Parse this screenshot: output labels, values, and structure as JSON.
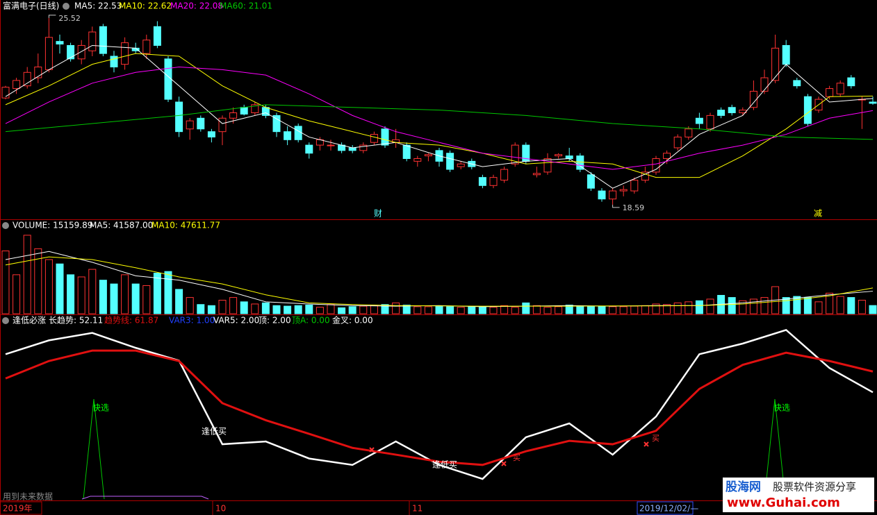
{
  "chart_data": [
    {
      "type": "candlestick",
      "title": "富满电子(日线)",
      "ylim": [
        18.2,
        25.8
      ],
      "up_color": "#ff3232",
      "down_color": "#54ffff",
      "open": [
        22.55,
        22.9,
        23.0,
        23.3,
        23.6,
        24.65,
        24.5,
        24.0,
        24.3,
        25.2,
        24.1,
        23.8,
        24.4,
        24.2,
        25.2,
        24.0,
        22.4,
        21.4,
        21.8,
        21.3,
        21.3,
        21.8,
        22.2,
        22.0,
        22.2,
        21.9,
        21.3,
        21.5,
        20.8,
        20.8,
        20.8,
        20.8,
        20.7,
        20.6,
        20.9,
        21.4,
        20.9,
        20.8,
        20.2,
        20.4,
        20.6,
        20.5,
        20.0,
        20.2,
        19.6,
        19.3,
        19.5,
        20.1,
        20.8,
        19.7,
        19.8,
        20.4,
        20.4,
        20.4,
        19.7,
        19.1,
        18.8,
        19.1,
        19.1,
        19.5,
        19.8,
        20.3,
        20.7,
        21.1,
        21.8,
        21.4,
        22.1,
        22.2,
        22.0,
        22.2,
        22.8,
        23.2,
        24.5,
        23.2,
        22.6,
        22.1,
        22.6,
        22.7,
        23.3,
        22.5,
        22.4
      ],
      "high": [
        23.0,
        23.3,
        23.7,
        24.2,
        25.52,
        24.9,
        24.6,
        24.7,
        25.2,
        25.3,
        24.3,
        24.8,
        24.6,
        24.9,
        25.4,
        24.1,
        22.6,
        21.8,
        21.9,
        21.4,
        21.9,
        22.2,
        22.3,
        22.4,
        22.3,
        22.0,
        21.5,
        21.6,
        20.9,
        21.1,
        21.0,
        20.9,
        20.8,
        20.9,
        21.3,
        21.5,
        21.4,
        20.9,
        20.4,
        20.5,
        20.7,
        20.6,
        20.2,
        20.3,
        19.7,
        19.7,
        20.0,
        20.9,
        20.9,
        20.0,
        20.5,
        20.5,
        20.7,
        20.5,
        19.8,
        19.2,
        19.2,
        19.3,
        19.6,
        20.0,
        20.4,
        20.6,
        21.2,
        21.5,
        22.0,
        22.0,
        22.2,
        22.3,
        22.2,
        23.2,
        23.6,
        24.9,
        24.7,
        23.3,
        22.7,
        22.6,
        23.0,
        23.2,
        23.4,
        22.6,
        22.6
      ],
      "low": [
        22.5,
        22.7,
        22.9,
        23.1,
        23.5,
        24.2,
        23.9,
        23.8,
        24.1,
        24.1,
        23.5,
        23.6,
        24.2,
        24.0,
        24.4,
        22.4,
        21.1,
        21.0,
        21.3,
        20.9,
        20.8,
        21.6,
        21.9,
        21.9,
        21.8,
        21.1,
        20.8,
        20.9,
        20.3,
        20.6,
        20.6,
        20.5,
        20.5,
        20.5,
        20.8,
        20.7,
        20.7,
        20.2,
        20.0,
        20.2,
        20.0,
        19.8,
        19.9,
        19.9,
        19.2,
        19.2,
        19.4,
        20.0,
        20.1,
        19.6,
        19.7,
        20.3,
        20.2,
        19.8,
        19.1,
        18.7,
        18.59,
        18.9,
        19.0,
        19.4,
        19.7,
        20.1,
        20.6,
        21.0,
        21.4,
        21.3,
        21.8,
        21.9,
        21.9,
        22.1,
        22.7,
        23.1,
        23.7,
        22.9,
        21.5,
        22.0,
        22.5,
        22.6,
        22.9,
        21.4,
        22.3
      ],
      "close": [
        22.95,
        23.2,
        23.5,
        23.7,
        24.8,
        24.55,
        24.0,
        24.5,
        25.0,
        24.2,
        23.7,
        24.6,
        24.3,
        24.7,
        24.5,
        22.5,
        21.3,
        21.7,
        21.4,
        21.1,
        21.8,
        22.0,
        21.95,
        22.3,
        21.9,
        21.3,
        21.0,
        21.0,
        20.5,
        21.0,
        20.8,
        20.6,
        20.6,
        20.8,
        21.2,
        20.8,
        21.0,
        20.3,
        20.3,
        20.45,
        20.2,
        19.9,
        20.1,
        20.0,
        19.3,
        19.6,
        19.9,
        20.8,
        20.2,
        19.75,
        20.3,
        20.45,
        20.3,
        19.9,
        19.2,
        18.8,
        19.1,
        19.15,
        19.5,
        19.8,
        20.3,
        20.5,
        21.1,
        21.4,
        21.6,
        21.9,
        21.9,
        22.0,
        22.1,
        22.8,
        23.3,
        24.4,
        23.8,
        23.0,
        21.6,
        22.5,
        22.9,
        23.1,
        23.0,
        22.5,
        22.35
      ],
      "series": [
        {
          "name": "MA5: 22.53",
          "color": "#ffffff",
          "x": [
            0,
            4,
            8,
            12,
            16,
            20,
            24,
            28,
            32,
            36,
            40,
            44,
            48,
            52,
            56,
            60,
            64,
            68,
            72,
            76,
            80
          ],
          "values": [
            22.6,
            23.6,
            24.5,
            24.4,
            23.0,
            21.6,
            22.0,
            21.1,
            20.7,
            20.9,
            20.4,
            20.0,
            20.2,
            20.3,
            19.2,
            19.9,
            21.2,
            21.9,
            23.8,
            22.4,
            22.53
          ]
        },
        {
          "name": "MA10: 22.62",
          "color": "#ffff00",
          "x": [
            0,
            4,
            8,
            12,
            16,
            20,
            24,
            28,
            32,
            36,
            40,
            44,
            48,
            52,
            56,
            60,
            64,
            68,
            72,
            76,
            80
          ],
          "values": [
            22.3,
            23.0,
            23.8,
            24.2,
            24.1,
            23.0,
            22.2,
            21.7,
            21.3,
            20.9,
            20.8,
            20.5,
            20.1,
            20.2,
            20.1,
            19.6,
            19.6,
            20.4,
            21.4,
            22.6,
            22.62
          ]
        },
        {
          "name": "MA20: 22.08",
          "color": "#ff00ff",
          "x": [
            0,
            4,
            8,
            12,
            16,
            20,
            24,
            28,
            32,
            36,
            40,
            44,
            48,
            52,
            56,
            60,
            64,
            68,
            72,
            76,
            80
          ],
          "values": [
            21.6,
            22.4,
            23.1,
            23.5,
            23.7,
            23.6,
            23.4,
            22.7,
            21.9,
            21.3,
            20.9,
            20.5,
            20.3,
            20.1,
            19.9,
            20.1,
            20.5,
            20.8,
            21.2,
            21.8,
            22.08
          ]
        },
        {
          "name": "MA60: 21.01",
          "color": "#00c800",
          "x": [
            0,
            8,
            16,
            24,
            32,
            40,
            48,
            56,
            64,
            72,
            80
          ],
          "values": [
            21.3,
            21.6,
            21.9,
            22.3,
            22.2,
            22.1,
            21.9,
            21.6,
            21.4,
            21.1,
            21.01
          ]
        }
      ],
      "annotations": [
        "25.52",
        "18.59",
        "财",
        "减"
      ]
    },
    {
      "type": "volume",
      "title": "VOLUME: 15159.89",
      "ylim": [
        0,
        150000
      ],
      "values": [
        116000,
        72000,
        145000,
        120000,
        100000,
        92000,
        72000,
        68000,
        82000,
        62000,
        55000,
        72000,
        55000,
        52000,
        75000,
        78000,
        45000,
        30000,
        17000,
        15000,
        25000,
        30000,
        22000,
        18000,
        20000,
        15000,
        14000,
        15000,
        16000,
        12000,
        17000,
        11000,
        13000,
        14000,
        15000,
        17000,
        20000,
        16000,
        13000,
        13000,
        14000,
        13000,
        12000,
        13000,
        12000,
        12000,
        15000,
        12000,
        20000,
        15000,
        12000,
        13000,
        16000,
        14000,
        14000,
        14000,
        13000,
        13000,
        14000,
        15000,
        18000,
        17000,
        20000,
        22000,
        24000,
        27000,
        34000,
        30000,
        24000,
        27000,
        30000,
        50000,
        30000,
        32000,
        30000,
        22000,
        38000,
        32000,
        30000,
        25000,
        15159.89
      ],
      "series": [
        {
          "name": "MA5: 41587.00",
          "color": "#ffffff",
          "x": [
            0,
            4,
            8,
            12,
            16,
            20,
            24,
            28,
            32,
            36,
            40,
            44,
            48,
            52,
            56,
            60,
            64,
            68,
            72,
            76,
            80
          ],
          "values": [
            100000,
            115000,
            95000,
            70000,
            62000,
            45000,
            22000,
            18000,
            15000,
            14000,
            15000,
            13000,
            14000,
            15000,
            14000,
            15000,
            15000,
            20000,
            27000,
            35000,
            41587
          ]
        },
        {
          "name": "MA10: 47611.77",
          "color": "#ffff00",
          "x": [
            0,
            4,
            8,
            12,
            16,
            20,
            24,
            28,
            32,
            36,
            40,
            44,
            48,
            52,
            56,
            60,
            64,
            68,
            72,
            76,
            80
          ],
          "values": [
            90000,
            105000,
            100000,
            85000,
            68000,
            55000,
            35000,
            20000,
            17000,
            15000,
            14500,
            14000,
            14000,
            14000,
            14500,
            14500,
            15000,
            18000,
            24000,
            33000,
            47611.77
          ]
        }
      ]
    },
    {
      "type": "line",
      "title": "逢低必涨",
      "ylim": [
        0,
        90
      ],
      "series": [
        {
          "name": "长趋势: 52.11",
          "color": "#ffffff",
          "x": [
            0,
            4,
            8,
            12,
            16,
            20,
            24,
            28,
            32,
            36,
            40,
            44,
            48,
            52,
            56,
            60,
            64,
            68,
            72,
            76,
            80
          ],
          "values": [
            70,
            76.5,
            80,
            73,
            67,
            27.7,
            29,
            21,
            18,
            29,
            18,
            11.4,
            31,
            37.5,
            22.8,
            40.7,
            70,
            75,
            81.4,
            63.5,
            52.11
          ]
        },
        {
          "name": "趋势线: 61.87",
          "color": "#e01010",
          "x": [
            0,
            4,
            8,
            12,
            16,
            20,
            24,
            28,
            32,
            36,
            40,
            44,
            48,
            52,
            56,
            60,
            64,
            68,
            72,
            76,
            80
          ],
          "values": [
            58.6,
            66.8,
            71.7,
            71.7,
            66.8,
            47,
            39,
            32.6,
            26,
            22.8,
            19.5,
            18,
            24.4,
            29.3,
            27.7,
            34,
            53.7,
            65,
            70.7,
            66.8,
            61.87
          ]
        }
      ],
      "extra_legend": [
        {
          "name": "VAR3: 1.00",
          "color": "#2040ff"
        },
        {
          "name": "VAR5: 2.00",
          "color": "#ffffff"
        },
        {
          "name": "顶: 2.00",
          "color": "#ffffff"
        },
        {
          "name": "顶A: 0.00",
          "color": "#00c800"
        },
        {
          "name": "金叉: 0.00",
          "color": "#ffffff"
        }
      ],
      "annotations": [
        "逢低买",
        "逢低买",
        "买",
        "买",
        "快选",
        "快选"
      ]
    }
  ],
  "x_axis": {
    "labels": [
      "2019年",
      "10",
      "11",
      "2019/12/02/—"
    ]
  },
  "note": "用到未来数据",
  "watermark": {
    "name": "股海网",
    "slogan": "股票软件资源分享",
    "url": "www.Guhai.com"
  }
}
